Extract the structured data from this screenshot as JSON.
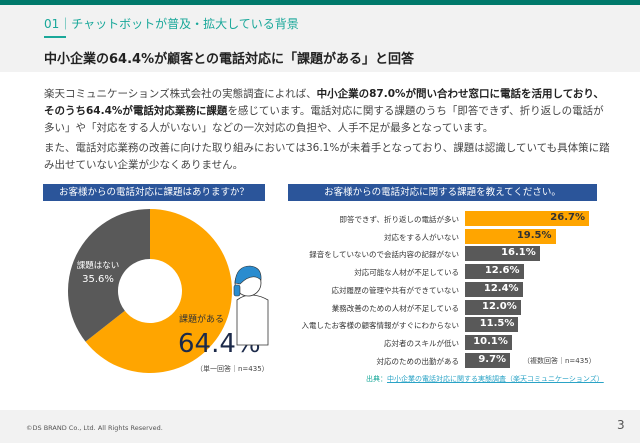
{
  "header": {
    "section": "01｜チャットボットが普及・拡大している背景",
    "title": "中小企業の64.4%が顧客との電話対応に「課題がある」と回答"
  },
  "body": {
    "p1a": "楽天コミュニケーションズ株式会社の実態調査によれば、",
    "p1b": "中小企業の87.0%が問い合わせ窓口に電話を活用しており、そのうち64.4%が電話対応業務に課題",
    "p1c": "を感じています。電話対応に関する課題のうち「即答できず、折り返しの電話が多い」や「対応をする人がいない」などの一次対応の負担や、人手不足が最多となっています。",
    "p2": "また、電話対応業務の改善に向けた取り組みにおいては36.1%が未着手となっており、課題は認識していても具体策に踏み出せていない企業が少なくありません。"
  },
  "donut": {
    "title": "お客様からの電話対応に課題はありますか？",
    "note": "（単一回答｜n=435）",
    "slices": [
      {
        "label": "課題がある",
        "value": 64.4,
        "display": "64.4%",
        "color": "#ffa500"
      },
      {
        "label": "課題はない",
        "value": 35.6,
        "display": "35.6%",
        "color": "#595959"
      }
    ]
  },
  "bars": {
    "title": "お客様からの電話対応に関する課題を教えてください。",
    "note": "（複数回答｜n=435）",
    "source_label": "出典：",
    "source_link": "中小企業の電話対応に関する実態調査（楽天コミュニケーションズ）",
    "items": [
      {
        "label": "即答できず、折り返しの電話が多い",
        "value": 26.7,
        "display": "26.7%",
        "color": "#ffa500"
      },
      {
        "label": "対応をする人がいない",
        "value": 19.5,
        "display": "19.5%",
        "color": "#ffa500"
      },
      {
        "label": "録音をしていないので会話内容の記録がない",
        "value": 16.1,
        "display": "16.1%",
        "color": "#595959"
      },
      {
        "label": "対応可能な人材が不足している",
        "value": 12.6,
        "display": "12.6%",
        "color": "#595959"
      },
      {
        "label": "応対履歴の管理や共有ができていない",
        "value": 12.4,
        "display": "12.4%",
        "color": "#595959"
      },
      {
        "label": "業務改善のための人材が不足している",
        "value": 12.0,
        "display": "12.0%",
        "color": "#595959"
      },
      {
        "label": "入電したお客様の顧客情報がすぐにわからない",
        "value": 11.5,
        "display": "11.5%",
        "color": "#595959"
      },
      {
        "label": "応対者のスキルが低い",
        "value": 10.1,
        "display": "10.1%",
        "color": "#595959"
      },
      {
        "label": "対応のための出勤がある",
        "value": 9.7,
        "display": "9.7%",
        "color": "#595959"
      }
    ]
  },
  "footer": {
    "copyright": "©DS BRAND Co., Ltd. All Rights Reserved.",
    "page": "3"
  }
}
